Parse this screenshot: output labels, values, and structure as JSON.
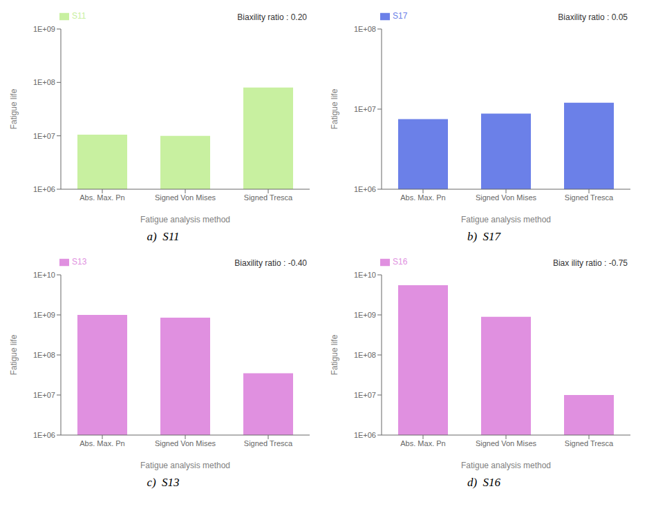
{
  "chart_data": [
    {
      "type": "bar",
      "subtitle": "a)  S11",
      "annotations": [
        "Biaxility ratio : 0.20"
      ],
      "xlabel": "Fatigue analysis method",
      "ylabel": "Fatigue life",
      "categories": [
        "Abs. Max. Pn",
        "Signed Von Mises",
        "Signed Tresca"
      ],
      "series": [
        {
          "name": "S11",
          "color": "#c8f0a0",
          "values": [
            10500000,
            10000000,
            80000000
          ]
        }
      ],
      "log": "y",
      "ylim": [
        1000000,
        1000000000
      ],
      "yticks": [
        {
          "value": 1000000,
          "label": "1E+06"
        },
        {
          "value": 10000000,
          "label": "1E+07"
        },
        {
          "value": 100000000,
          "label": "1E+08"
        },
        {
          "value": 1000000000,
          "label": "1E+09"
        }
      ],
      "legend": "upper left",
      "grid": false
    },
    {
      "type": "bar",
      "subtitle": "b)  S17",
      "annotations": [
        "Biaxility ratio : 0.05"
      ],
      "xlabel": "Fatigue analysis method",
      "ylabel": "Fatigue life",
      "categories": [
        "Abs. Max. Pn",
        "Signed Von Mises",
        "Signed Tresca"
      ],
      "series": [
        {
          "name": "S17",
          "color": "#6b80e8",
          "values": [
            7500000,
            8800000,
            12000000
          ]
        }
      ],
      "log": "y",
      "ylim": [
        1000000,
        100000000
      ],
      "yticks": [
        {
          "value": 1000000,
          "label": "1E+06"
        },
        {
          "value": 10000000,
          "label": "1E+07"
        },
        {
          "value": 100000000,
          "label": "1E+08"
        }
      ],
      "legend": "upper left",
      "grid": false
    },
    {
      "type": "bar",
      "subtitle": "c)  S13",
      "annotations": [
        "Biaxility ratio : -0.40"
      ],
      "xlabel": "Fatigue analysis method",
      "ylabel": "Fatigue life",
      "categories": [
        "Abs. Max. Pn",
        "Signed Von Mises",
        "Signed Tresca"
      ],
      "series": [
        {
          "name": "S13",
          "color": "#e090e0",
          "values": [
            1000000000,
            850000000,
            35000000
          ]
        }
      ],
      "log": "y",
      "ylim": [
        1000000,
        10000000000
      ],
      "yticks": [
        {
          "value": 1000000,
          "label": "1E+06"
        },
        {
          "value": 10000000,
          "label": "1E+07"
        },
        {
          "value": 100000000,
          "label": "1E+08"
        },
        {
          "value": 1000000000,
          "label": "1E+09"
        },
        {
          "value": 10000000000,
          "label": "1E+10"
        }
      ],
      "legend": "upper left",
      "grid": false
    },
    {
      "type": "bar",
      "subtitle": "d)  S16",
      "annotations": [
        "Biax ility ratio : -0.75"
      ],
      "xlabel": "Fatigue analysis method",
      "ylabel": "Fatigue life",
      "categories": [
        "Abs. Max. Pn",
        "Signed Von Mises",
        "Signed Tresca"
      ],
      "series": [
        {
          "name": "S16",
          "color": "#e090e0",
          "values": [
            5500000000,
            900000000,
            10000000
          ]
        }
      ],
      "log": "y",
      "ylim": [
        1000000,
        10000000000
      ],
      "yticks": [
        {
          "value": 1000000,
          "label": "1E+06"
        },
        {
          "value": 10000000,
          "label": "1E+07"
        },
        {
          "value": 100000000,
          "label": "1E+08"
        },
        {
          "value": 1000000000,
          "label": "1E+09"
        },
        {
          "value": 10000000000,
          "label": "1E+10"
        }
      ],
      "legend": "upper left",
      "grid": false
    }
  ]
}
